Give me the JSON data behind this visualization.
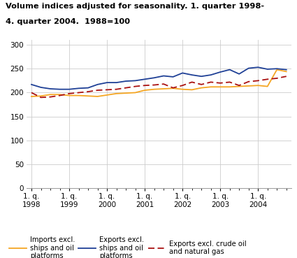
{
  "title_line1": "Volume indices adjusted for seasonality. 1. quarter 1998-",
  "title_line2": "4. quarter 2004.  1988=100",
  "ylim": [
    0,
    310
  ],
  "yticks": [
    0,
    50,
    100,
    150,
    200,
    250,
    300
  ],
  "background_color": "#ffffff",
  "grid_color": "#cccccc",
  "imports": [
    192,
    193,
    196,
    196,
    194,
    194,
    193,
    192,
    195,
    198,
    199,
    200,
    205,
    207,
    208,
    209,
    207,
    206,
    210,
    212,
    212,
    212,
    213,
    214,
    215,
    213,
    248,
    244
  ],
  "exports": [
    217,
    211,
    208,
    207,
    207,
    209,
    210,
    217,
    221,
    221,
    224,
    225,
    228,
    231,
    235,
    233,
    241,
    237,
    234,
    237,
    243,
    248,
    239,
    251,
    253,
    249,
    250,
    248
  ],
  "exports_excl": [
    200,
    190,
    191,
    194,
    198,
    200,
    202,
    205,
    206,
    207,
    210,
    213,
    215,
    216,
    218,
    210,
    215,
    222,
    217,
    222,
    220,
    222,
    215,
    223,
    225,
    228,
    230,
    234
  ],
  "imports_color": "#f5a623",
  "exports_color": "#1f4096",
  "exports_excl_color": "#aa1111",
  "n_points": 28,
  "xtick_positions": [
    0,
    4,
    8,
    12,
    16,
    20,
    24
  ],
  "xtick_labels": [
    "1. q.\n1998",
    "1. q.\n1999",
    "1. q.\n2000",
    "1. q.\n2001",
    "1. q.\n2002",
    "1. q.\n2003",
    "1. q.\n2004"
  ],
  "legend_labels": [
    "Imports excl.\nships and oil\nplatforms",
    "Exports excl.\nships and oil\nplatforms",
    "Exports excl. crude oil\nand natural gas"
  ]
}
